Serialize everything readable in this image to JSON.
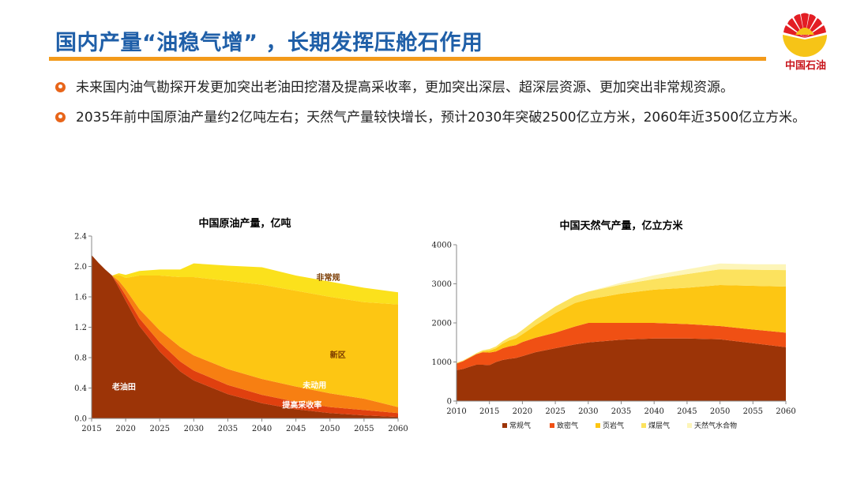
{
  "header": {
    "title": "国内产量“油稳气增” ，长期发挥压舱石作用",
    "logo_text": "中国石油"
  },
  "bullets": [
    "未来国内油气勘探开发更加突出老油田挖潜及提高采收率，更加突出深层、超深层资源、更加突出非常规资源。",
    "2035年前中国原油产量约2亿吨左右；天然气产量较快增长，预计2030年突破2500亿立方米，2060年近3500亿立方米。"
  ],
  "colors": {
    "title": "#1f5fa8",
    "rule": "#f39a1a",
    "bullet": "#e8651a",
    "brand_red": "#c8161d"
  },
  "chart_data": [
    {
      "type": "area",
      "stacked": true,
      "title": "中国原油产量，亿吨",
      "x": [
        2015,
        2016,
        2017,
        2018,
        2019,
        2020,
        2022,
        2025,
        2028,
        2030,
        2035,
        2040,
        2045,
        2050,
        2055,
        2060
      ],
      "ylim": [
        0,
        2.4
      ],
      "yticks": [
        "0.0",
        "0.4",
        "0.8",
        "1.2",
        "1.6",
        "2.0",
        "2.4"
      ],
      "xticks": [
        2015,
        2020,
        2025,
        2030,
        2035,
        2040,
        2045,
        2050,
        2055,
        2060
      ],
      "series": [
        {
          "name": "老油田",
          "color": "#9c3407",
          "values": [
            2.15,
            2.05,
            1.96,
            1.88,
            1.72,
            1.55,
            1.22,
            0.88,
            0.62,
            0.5,
            0.32,
            0.2,
            0.12,
            0.07,
            0.04,
            0.02
          ]
        },
        {
          "name": "提高采收率",
          "color": "#e0400f",
          "values": [
            0,
            0,
            0,
            0,
            0.04,
            0.07,
            0.1,
            0.12,
            0.13,
            0.13,
            0.12,
            0.11,
            0.1,
            0.08,
            0.07,
            0.05
          ]
        },
        {
          "name": "未动用",
          "color": "#f77f12",
          "values": [
            0,
            0,
            0,
            0,
            0.05,
            0.08,
            0.12,
            0.16,
            0.19,
            0.2,
            0.21,
            0.21,
            0.2,
            0.18,
            0.15,
            0.08
          ]
        },
        {
          "name": "新区",
          "color": "#fdc613",
          "values": [
            0,
            0,
            0,
            0,
            0.08,
            0.15,
            0.44,
            0.72,
            0.92,
            1.03,
            1.16,
            1.24,
            1.26,
            1.27,
            1.27,
            1.35
          ]
        },
        {
          "name": "非常规",
          "color": "#fbe11c",
          "values": [
            0,
            0,
            0,
            0,
            0.02,
            0.04,
            0.06,
            0.08,
            0.1,
            0.18,
            0.2,
            0.23,
            0.2,
            0.2,
            0.19,
            0.16
          ]
        }
      ],
      "annotations": [
        "非常规",
        "新区",
        "未动用",
        "老油田",
        "提高采收率"
      ]
    },
    {
      "type": "area",
      "stacked": true,
      "title": "中国天然气产量，亿立方米",
      "x": [
        2010,
        2011,
        2012,
        2013,
        2014,
        2015,
        2016,
        2017,
        2018,
        2019,
        2020,
        2022,
        2025,
        2028,
        2030,
        2035,
        2040,
        2045,
        2050,
        2055,
        2060
      ],
      "ylim": [
        0,
        4000
      ],
      "yticks": [
        "0",
        "1000",
        "2000",
        "3000",
        "4000"
      ],
      "xticks": [
        2010,
        2015,
        2020,
        2025,
        2030,
        2035,
        2040,
        2045,
        2050,
        2055,
        2060
      ],
      "series": [
        {
          "name": "常规气",
          "color": "#9c3407",
          "values": [
            790,
            820,
            880,
            930,
            930,
            920,
            1000,
            1050,
            1080,
            1100,
            1150,
            1250,
            1350,
            1450,
            1500,
            1570,
            1600,
            1600,
            1580,
            1480,
            1380
          ]
        },
        {
          "name": "致密气",
          "color": "#f05014",
          "values": [
            170,
            200,
            230,
            270,
            320,
            320,
            270,
            300,
            320,
            330,
            360,
            370,
            400,
            460,
            500,
            430,
            400,
            370,
            340,
            350,
            370
          ]
        },
        {
          "name": "页岩气",
          "color": "#fdc613",
          "values": [
            0,
            0,
            0,
            0,
            20,
            50,
            80,
            120,
            150,
            170,
            200,
            320,
            500,
            600,
            600,
            750,
            850,
            930,
            1050,
            1120,
            1180
          ]
        },
        {
          "name": "煤层气",
          "color": "#fce25e",
          "values": [
            20,
            20,
            20,
            25,
            30,
            40,
            50,
            60,
            80,
            100,
            110,
            140,
            170,
            180,
            200,
            230,
            270,
            350,
            400,
            410,
            420
          ]
        },
        {
          "name": "天然气水合物",
          "color": "#fdf5b8",
          "values": [
            0,
            0,
            0,
            0,
            0,
            0,
            0,
            0,
            0,
            0,
            0,
            0,
            0,
            0,
            0,
            50,
            100,
            120,
            150,
            140,
            150
          ]
        }
      ]
    }
  ]
}
